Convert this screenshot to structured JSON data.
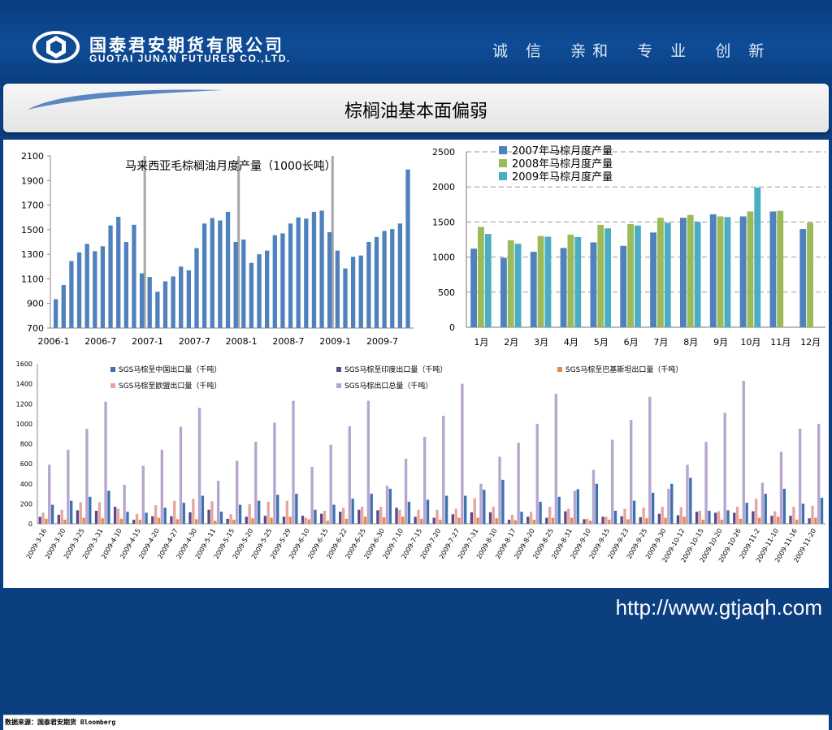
{
  "header": {
    "company_cn": "国泰君安期货有限公司",
    "company_en": "GUOTAI JUNAN FUTURES CO.,LTD.",
    "slogan": "诚 信  亲和  专 业  创 新"
  },
  "slide_title": "棕榈油基本面偏弱",
  "source": "数据来源：国泰君安期货 Bloomberg",
  "footer_url": "http://www.gtjaqh.com",
  "colors": {
    "brand_blue": "#0b3f80",
    "bar_blue": "#4f81bd",
    "bar_green": "#9bbb59",
    "bar_cyan": "#4bacc6",
    "export_purple": "#b7a5ce"
  },
  "chart_data": [
    {
      "type": "bar",
      "title": "马来西亚毛棕榈油月度产量（1000长吨）",
      "ylim": [
        700,
        2100
      ],
      "yticks": [
        "2100",
        "1900",
        "1700",
        "1500",
        "1300",
        "1100",
        "900",
        "700"
      ],
      "xtick_labels": [
        "2006-1",
        "2006-7",
        "2007-1",
        "2007-7",
        "2008-1",
        "2008-7",
        "2009-1",
        "2009-7"
      ],
      "values": [
        935,
        1050,
        1245,
        1315,
        1385,
        1325,
        1365,
        1535,
        1605,
        1400,
        1540,
        1145,
        1115,
        995,
        1080,
        1120,
        1200,
        1170,
        1350,
        1550,
        1595,
        1575,
        1645,
        1400,
        1420,
        1230,
        1300,
        1330,
        1455,
        1470,
        1550,
        1600,
        1590,
        1645,
        1655,
        1480,
        1330,
        1185,
        1280,
        1290,
        1400,
        1440,
        1490,
        1505,
        1550,
        1990
      ],
      "grid": "vertical separators at January"
    },
    {
      "type": "bar",
      "categories": [
        "1月",
        "2月",
        "3月",
        "4月",
        "5月",
        "6月",
        "7月",
        "8月",
        "9月",
        "10月",
        "11月",
        "12月"
      ],
      "ylim": [
        0,
        2500
      ],
      "yticks": [
        "2500",
        "2000",
        "1500",
        "1000",
        "500",
        "0"
      ],
      "legend": "top-left",
      "series": [
        {
          "name": "2007年马棕月度产量",
          "values": [
            1120,
            990,
            1075,
            1130,
            1210,
            1160,
            1350,
            1560,
            1610,
            1580,
            1650,
            1400
          ]
        },
        {
          "name": "2008年马棕月度产量",
          "values": [
            1430,
            1240,
            1300,
            1320,
            1460,
            1470,
            1560,
            1600,
            1580,
            1650,
            1660,
            1490
          ]
        },
        {
          "name": "2009年马棕月度产量",
          "values": [
            1330,
            1190,
            1290,
            1285,
            1410,
            1450,
            1490,
            1500,
            1570,
            1990,
            null,
            null
          ]
        }
      ]
    },
    {
      "type": "bar",
      "ylim": [
        0,
        1600
      ],
      "yticks": [
        "1600",
        "1400",
        "1200",
        "1000",
        "800",
        "600",
        "400",
        "200",
        "0"
      ],
      "legend": "top",
      "categories": [
        "2009-3-16",
        "2009-3-20",
        "2009-3-25",
        "2009-3-31",
        "2009-4-10",
        "2009-4-15",
        "2009-4-20",
        "2009-4-27",
        "2009-4-30",
        "2009-5-11",
        "2009-5-15",
        "2009-5-20",
        "2009-5-25",
        "2009-5-29",
        "2009-6-10",
        "2009-6-15",
        "2009-6-22",
        "2009-6-25",
        "2009-6-30",
        "2009-7-10",
        "2009-7-15",
        "2009-7-20",
        "2009-7-27",
        "2009-7-31",
        "2009-8-10",
        "2009-8-17",
        "2009-8-20",
        "2009-8-25",
        "2009-8-31",
        "2009-9-10",
        "2009-9-15",
        "2009-9-23",
        "2009-9-25",
        "2009-9-30",
        "2009-10-12",
        "2009-10-15",
        "2009-10-20",
        "2009-10-26",
        "2009-11-2",
        "2009-11-10",
        "2009-11-16",
        "2009-11-20"
      ],
      "series": [
        {
          "name": "SGS马棕至中国出口量（千吨）",
          "values": [
            190,
            230,
            270,
            330,
            120,
            110,
            160,
            210,
            280,
            120,
            190,
            230,
            290,
            300,
            140,
            190,
            250,
            300,
            350,
            220,
            240,
            280,
            280,
            340,
            440,
            120,
            220,
            270,
            345,
            400,
            130,
            230,
            310,
            400,
            460,
            130,
            135,
            210,
            300,
            350,
            200,
            260
          ]
        },
        {
          "name": "SGS马棕至印度出口量（千吨）",
          "values": [
            70,
            90,
            135,
            130,
            170,
            40,
            75,
            75,
            115,
            140,
            50,
            70,
            80,
            70,
            80,
            100,
            120,
            140,
            135,
            160,
            70,
            60,
            95,
            115,
            115,
            40,
            70,
            60,
            125,
            45,
            70,
            75,
            65,
            100,
            85,
            120,
            110,
            110,
            125,
            80,
            80,
            55
          ]
        },
        {
          "name": "SGS马棕至巴基斯坦出口量（千吨）",
          "values": [
            50,
            40,
            60,
            55,
            50,
            40,
            60,
            45,
            45,
            30,
            40,
            55,
            60,
            70,
            45,
            30,
            50,
            70,
            65,
            70,
            50,
            40,
            60,
            60,
            55,
            35,
            40,
            60,
            60,
            30,
            40,
            45,
            55,
            60,
            70,
            40,
            40,
            50,
            60,
            70,
            40,
            60
          ]
        },
        {
          "name": "SGS马棕至欧盟出口量（千吨）",
          "values": [
            110,
            140,
            215,
            215,
            150,
            100,
            185,
            230,
            250,
            225,
            95,
            195,
            220,
            230,
            60,
            130,
            160,
            170,
            170,
            140,
            140,
            140,
            150,
            255,
            170,
            90,
            120,
            170,
            150,
            50,
            70,
            150,
            160,
            170,
            165,
            130,
            125,
            170,
            250,
            125,
            170,
            180
          ]
        },
        {
          "name": "SGS马棕出口总量（千吨）",
          "values": [
            590,
            740,
            950,
            1220,
            390,
            580,
            740,
            970,
            1160,
            430,
            630,
            820,
            1010,
            1230,
            570,
            790,
            975,
            1230,
            380,
            650,
            870,
            1080,
            1400,
            400,
            670,
            810,
            1000,
            1300,
            330,
            540,
            840,
            1040,
            1270,
            350,
            590,
            820,
            1110,
            1430,
            410,
            720,
            950,
            1000
          ]
        }
      ]
    }
  ]
}
